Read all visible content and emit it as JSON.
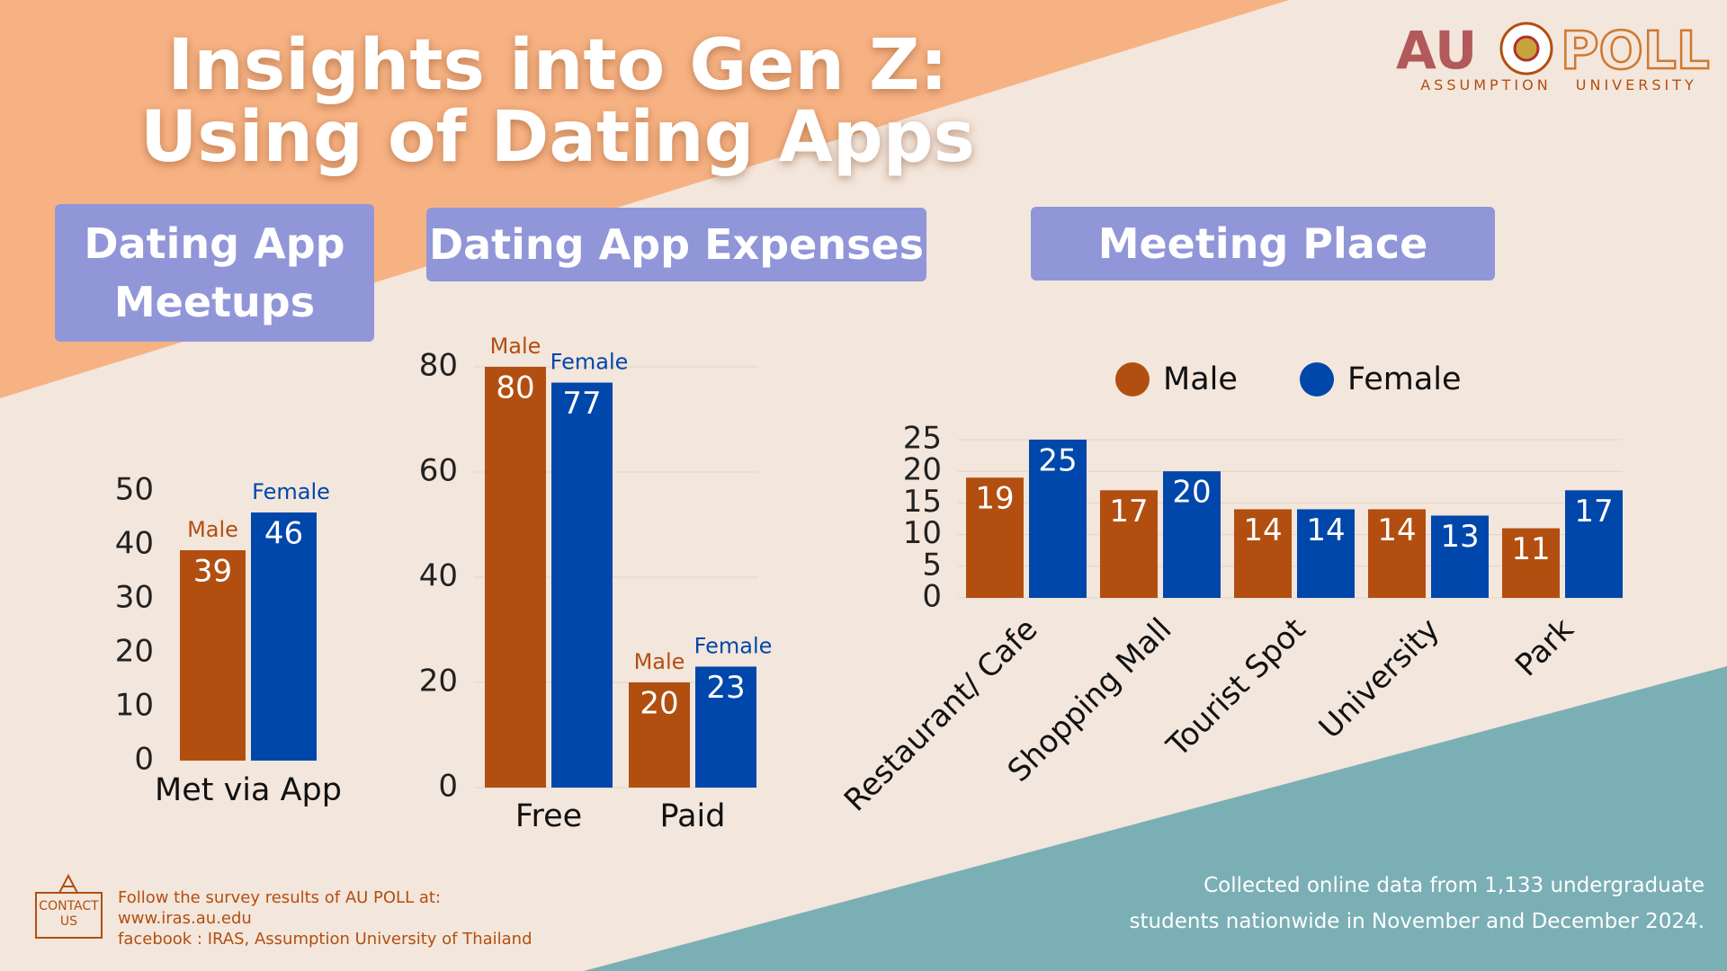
{
  "title": [
    "Insights into Gen Z:",
    "Using of Dating Apps"
  ],
  "logo": {
    "left": "AU",
    "right": "POLL",
    "subtitle": "ASSUMPTION UNIVERSITY"
  },
  "contact": "CONTACT US",
  "follow": [
    "Follow the survey results of AU POLL at:",
    "www.iras.au.edu",
    "facebook : IRAS, Assumption University of Thailand"
  ],
  "note": [
    "Collected online data from 1,133 undergraduate",
    "students nationwide in November and December 2024."
  ],
  "chart_data": [
    {
      "type": "bar",
      "title": "Dating App Meetups",
      "categories": [
        "Met via App"
      ],
      "series": [
        {
          "name": "Male",
          "color": "#b24f10",
          "values": [
            39
          ]
        },
        {
          "name": "Female",
          "color": "#0047ab",
          "values": [
            46
          ]
        }
      ],
      "ylim": [
        0,
        50
      ],
      "yticks": [
        0,
        10,
        20,
        30,
        40,
        50
      ],
      "grid": false,
      "legend": "above-bars"
    },
    {
      "type": "bar",
      "title": "Dating App Expenses",
      "categories": [
        "Free",
        "Paid"
      ],
      "series": [
        {
          "name": "Male",
          "color": "#b24f10",
          "values": [
            80,
            20
          ]
        },
        {
          "name": "Female",
          "color": "#0047ab",
          "values": [
            77,
            23
          ]
        }
      ],
      "ylim": [
        0,
        80
      ],
      "yticks": [
        0,
        20,
        40,
        60,
        80
      ],
      "grid": true,
      "legend": "above-bars"
    },
    {
      "type": "bar",
      "title": "Meeting Place",
      "categories": [
        "Restaurant/ Cafe",
        "Shopping Mall",
        "Tourist Spot",
        "University",
        "Park"
      ],
      "series": [
        {
          "name": "Male",
          "color": "#b24f10",
          "values": [
            19,
            17,
            14,
            14,
            11
          ]
        },
        {
          "name": "Female",
          "color": "#0047ab",
          "values": [
            25,
            20,
            14,
            13,
            17
          ]
        }
      ],
      "ylim": [
        0,
        25
      ],
      "yticks": [
        0,
        5,
        10,
        15,
        20,
        25
      ],
      "grid": true,
      "legend": "top"
    }
  ]
}
